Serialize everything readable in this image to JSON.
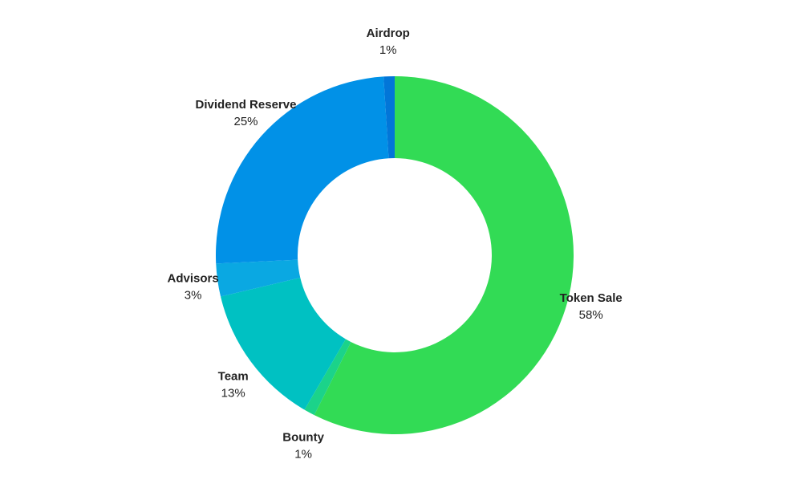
{
  "chart_data": {
    "type": "pie",
    "donut": true,
    "title": "",
    "slices": [
      {
        "label": "Token Sale",
        "value": 58,
        "percent_label": "58%",
        "color": "#32db55"
      },
      {
        "label": "Bounty",
        "value": 1,
        "percent_label": "1%",
        "color": "#1bd38a"
      },
      {
        "label": "Team",
        "value": 13,
        "percent_label": "13%",
        "color": "#00c1c2"
      },
      {
        "label": "Advisors",
        "value": 3,
        "percent_label": "3%",
        "color": "#0aa8e2"
      },
      {
        "label": "Dividend Reserve",
        "value": 25,
        "percent_label": "25%",
        "color": "#0191e7"
      },
      {
        "label": "Airdrop",
        "value": 1,
        "percent_label": "1%",
        "color": "#0276d8"
      }
    ],
    "start": "top",
    "direction": "clockwise",
    "legend": "none"
  }
}
